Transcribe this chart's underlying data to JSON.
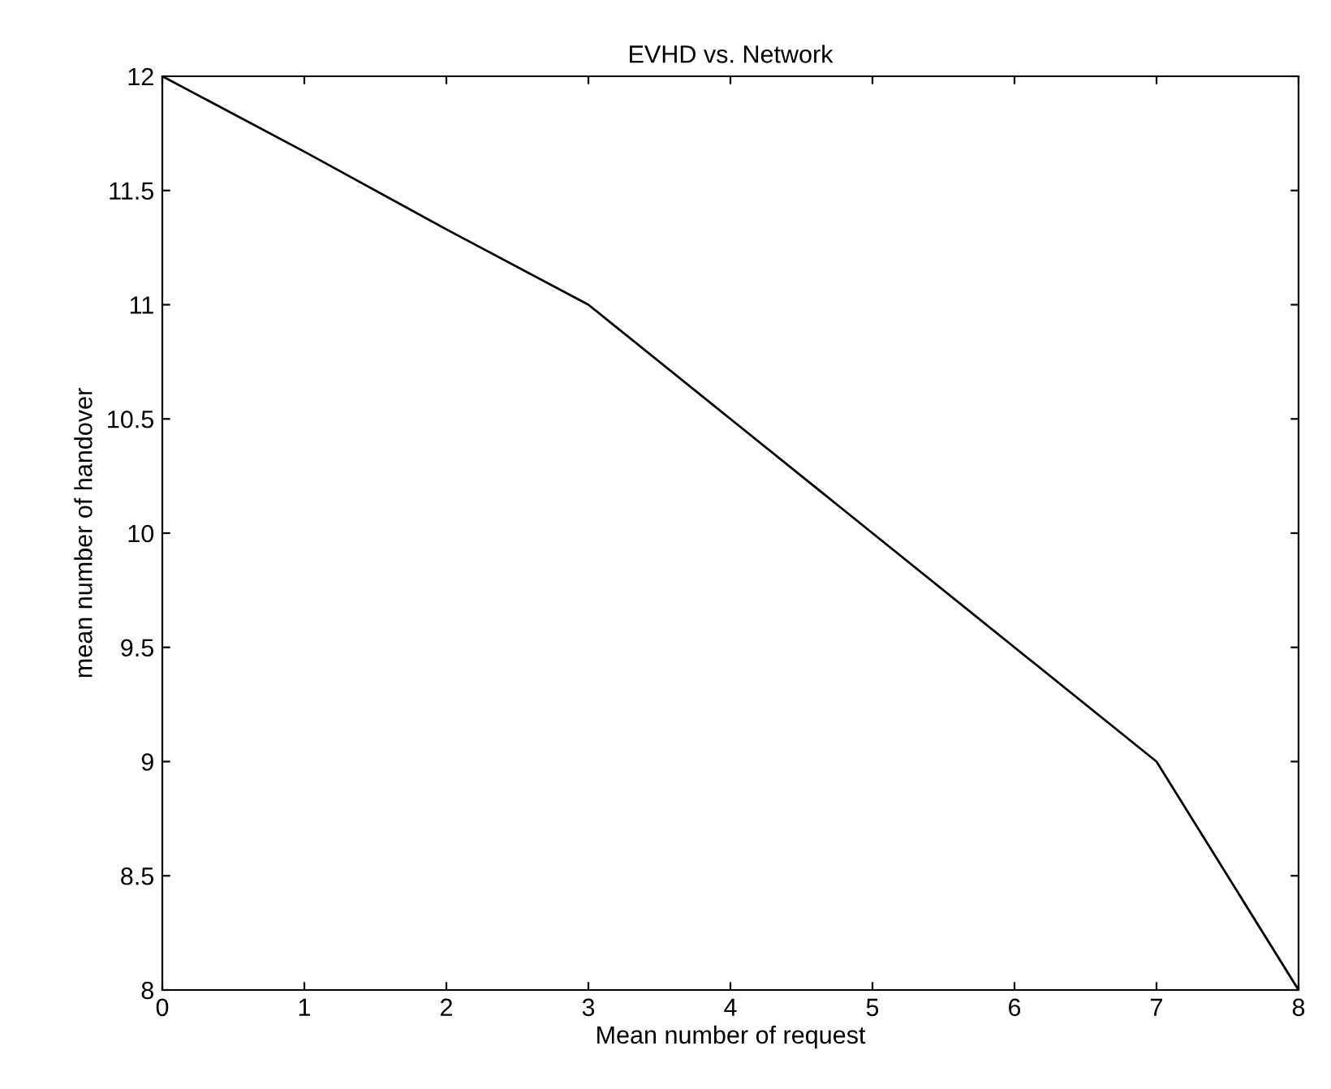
{
  "chart_data": {
    "type": "line",
    "title": "EVHD vs. Network",
    "xlabel": "Mean number of request",
    "ylabel": "mean number of handover",
    "x": [
      0,
      1,
      2,
      3,
      4,
      5,
      6,
      7,
      8
    ],
    "series": [
      {
        "color": "#000000",
        "values": [
          12,
          11.67,
          11.33,
          11,
          10.5,
          10,
          9.5,
          9,
          8
        ]
      }
    ],
    "xlim": [
      0,
      8
    ],
    "xticks": [
      0,
      1,
      2,
      3,
      4,
      5,
      6,
      7,
      8
    ],
    "ylim": [
      8,
      12
    ],
    "yticks": [
      8,
      8.5,
      9,
      9.5,
      10,
      10.5,
      11,
      11.5,
      12
    ],
    "grid": false,
    "legend": false,
    "marker": "none",
    "line_style": "solid"
  }
}
